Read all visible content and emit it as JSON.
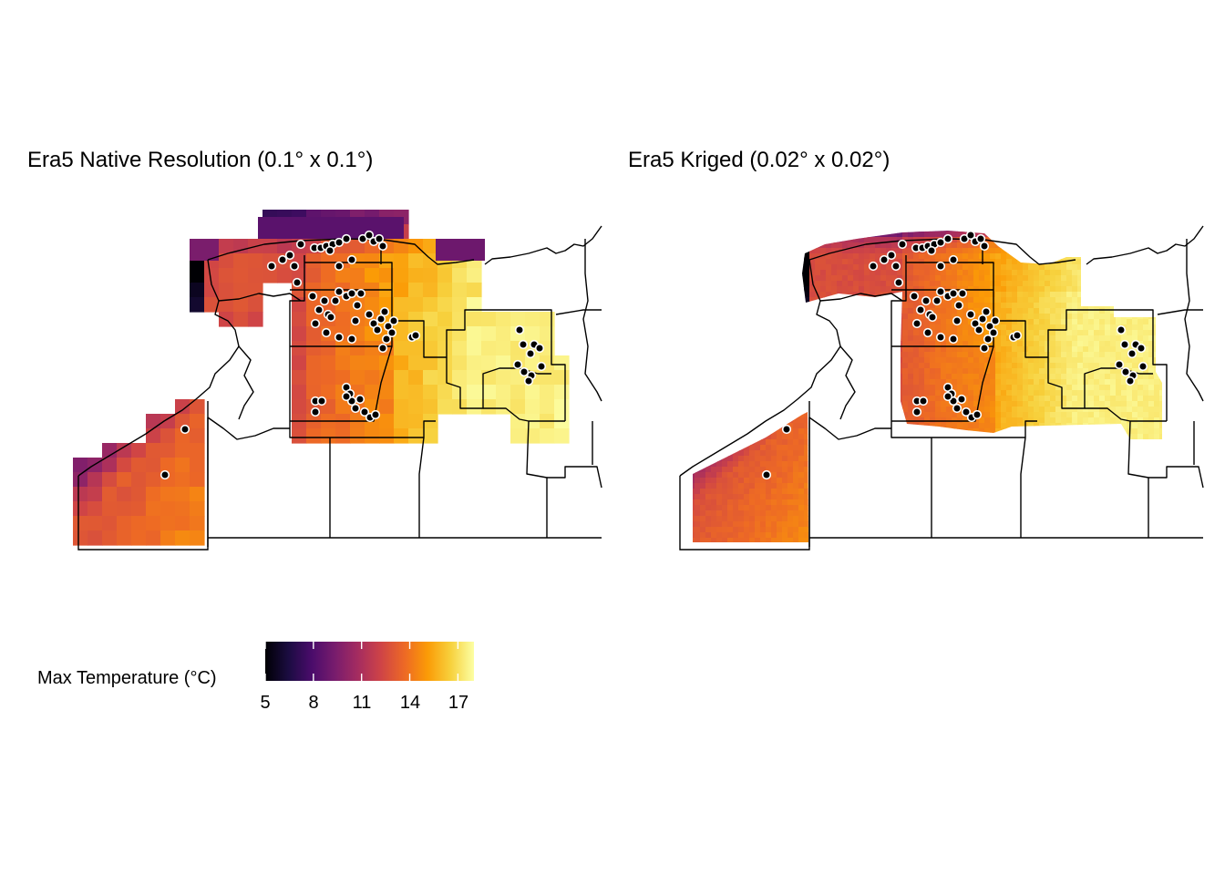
{
  "panels": [
    {
      "id": "left",
      "title": "Era5 Native Resolution (0.1° x 0.1°)",
      "grid_resolution_deg": 0.1
    },
    {
      "id": "right",
      "title": "Era5 Kriged (0.02° x 0.02°)",
      "grid_resolution_deg": 0.02
    }
  ],
  "legend": {
    "title": "Max Temperature (°C)",
    "min": 5,
    "max": 18,
    "ticks": [
      "5",
      "8",
      "11",
      "14",
      "17"
    ],
    "colors": [
      "#000004",
      "#1b0c41",
      "#4a0c6b",
      "#781c6d",
      "#a52c60",
      "#cf4446",
      "#ed6925",
      "#fb9b06",
      "#f7d13d",
      "#fcffa4"
    ]
  },
  "station_marker": {
    "fill": "#000000",
    "outline": "#ffffff"
  },
  "boundary_color": "#000000"
}
